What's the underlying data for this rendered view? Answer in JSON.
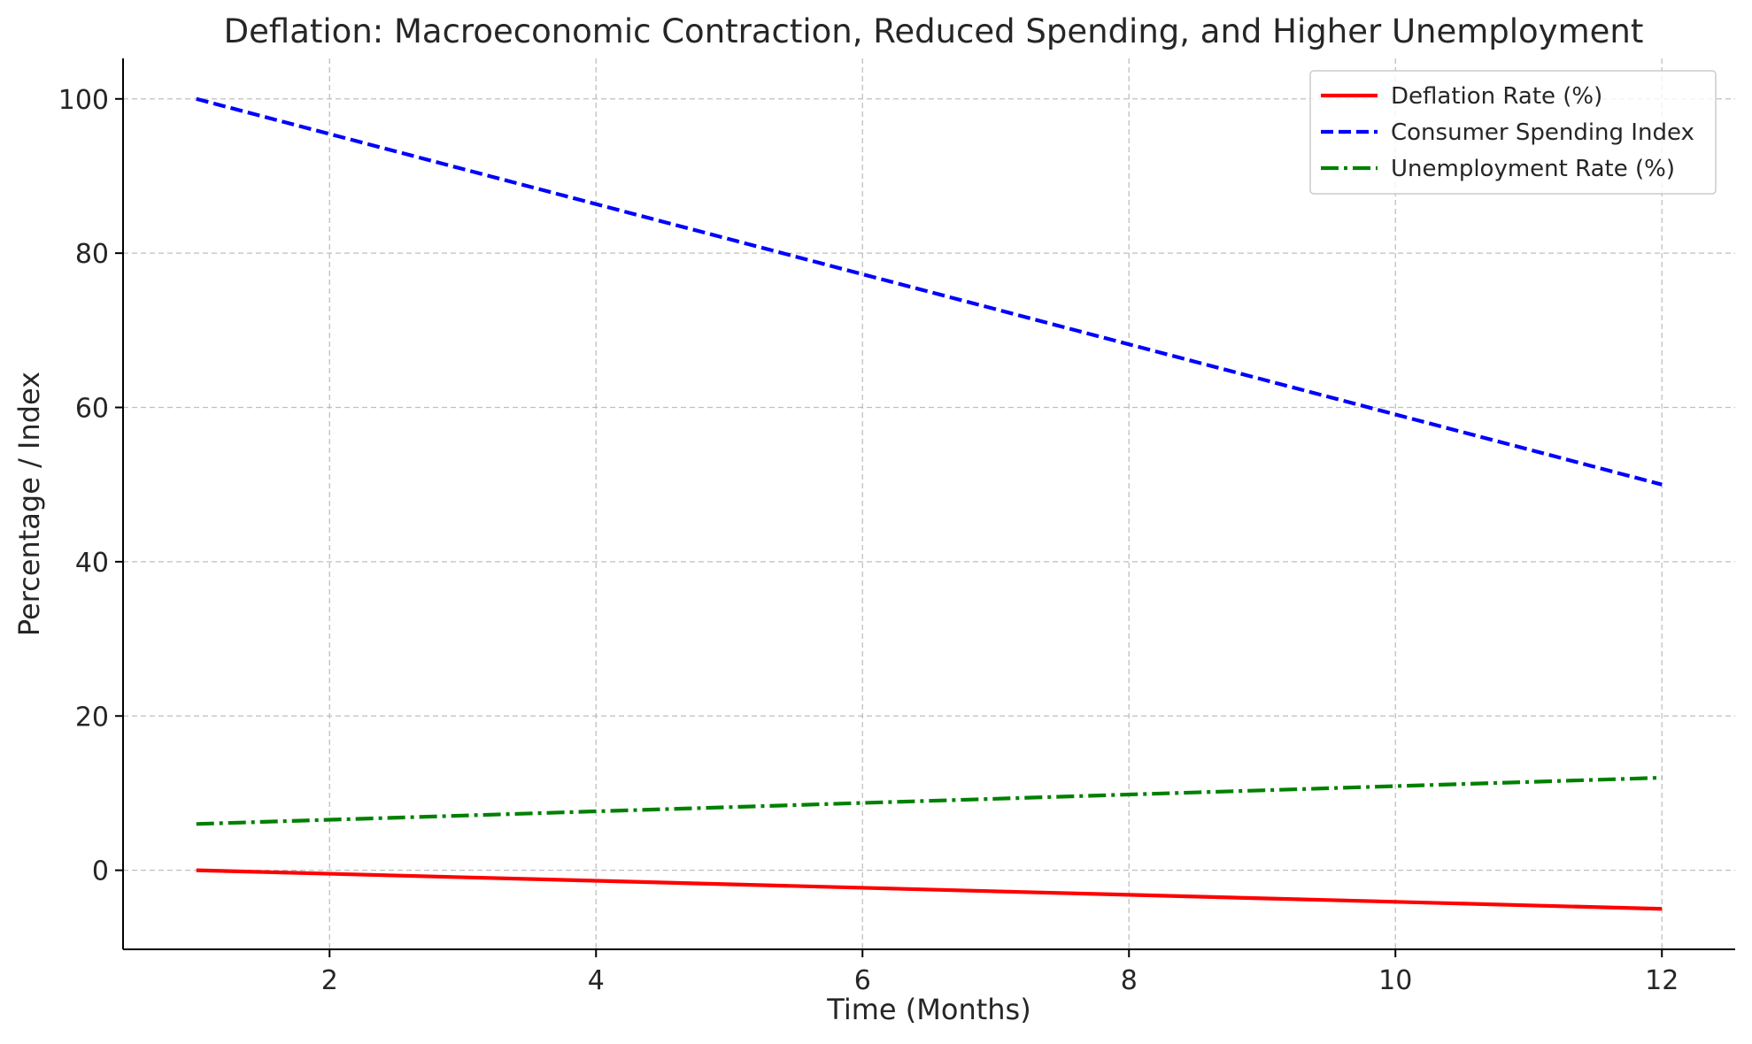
{
  "chart_data": {
    "type": "line",
    "title": "Deflation: Macroeconomic Contraction, Reduced Spending, and Higher Unemployment",
    "xlabel": "Time (Months)",
    "ylabel": "Percentage / Index",
    "x": [
      1,
      2,
      3,
      4,
      5,
      6,
      7,
      8,
      9,
      10,
      11,
      12
    ],
    "xlim": [
      0.45,
      12.55
    ],
    "ylim": [
      -10.25,
      105.25
    ],
    "xticks": [
      2,
      4,
      6,
      8,
      10,
      12
    ],
    "yticks": [
      0,
      20,
      40,
      60,
      80,
      100
    ],
    "grid": true,
    "legend_position": "top-right",
    "series": [
      {
        "name": "Deflation Rate (%)",
        "color": "#ff0000",
        "style": "solid",
        "values": [
          0,
          -0.45,
          -0.91,
          -1.36,
          -1.82,
          -2.27,
          -2.73,
          -3.18,
          -3.64,
          -4.09,
          -4.55,
          -5
        ]
      },
      {
        "name": "Consumer Spending Index",
        "color": "#0000ff",
        "style": "dashed",
        "values": [
          100,
          95.45,
          90.91,
          86.36,
          81.82,
          77.27,
          72.73,
          68.18,
          63.64,
          59.09,
          54.55,
          50
        ]
      },
      {
        "name": "Unemployment Rate (%)",
        "color": "#008000",
        "style": "dashdot",
        "values": [
          6,
          6.55,
          7.09,
          7.64,
          8.18,
          8.73,
          9.27,
          9.82,
          10.36,
          10.91,
          11.45,
          12
        ]
      }
    ]
  }
}
